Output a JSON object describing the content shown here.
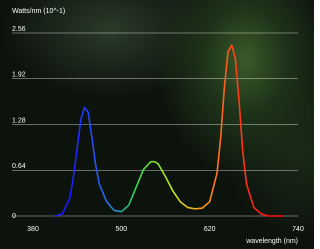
{
  "chart_data": {
    "type": "line",
    "ylabel": "Watts/nm (10^-1)",
    "xlabel": "wavelength (nm)",
    "x": [
      410,
      420,
      430,
      435,
      440,
      445,
      450,
      455,
      460,
      465,
      470,
      480,
      490,
      500,
      510,
      520,
      530,
      540,
      545,
      550,
      560,
      570,
      580,
      590,
      600,
      610,
      620,
      630,
      635,
      640,
      645,
      650,
      655,
      660,
      665,
      670,
      680,
      690,
      700,
      720
    ],
    "values": [
      0,
      0.03,
      0.25,
      0.55,
      0.95,
      1.35,
      1.52,
      1.45,
      1.1,
      0.72,
      0.45,
      0.2,
      0.08,
      0.06,
      0.15,
      0.4,
      0.65,
      0.76,
      0.76,
      0.73,
      0.55,
      0.35,
      0.2,
      0.12,
      0.1,
      0.11,
      0.2,
      0.6,
      1.1,
      1.8,
      2.3,
      2.39,
      2.2,
      1.6,
      0.9,
      0.45,
      0.12,
      0.03,
      0,
      0
    ],
    "color_stops": [
      {
        "x": 430,
        "color": "#1a1aff"
      },
      {
        "x": 480,
        "color": "#2a6cf0"
      },
      {
        "x": 520,
        "color": "#2fd84a"
      },
      {
        "x": 570,
        "color": "#c8e81c"
      },
      {
        "x": 610,
        "color": "#ff9a1c"
      },
      {
        "x": 660,
        "color": "#ff3a1a"
      },
      {
        "x": 700,
        "color": "#ff1010"
      }
    ],
    "xlim": [
      380,
      740
    ],
    "xticks": [
      380,
      500,
      620,
      740
    ],
    "ylim": [
      0,
      2.56
    ],
    "yticks": [
      0,
      0.64,
      1.28,
      1.92,
      2.56
    ],
    "grid": true
  }
}
